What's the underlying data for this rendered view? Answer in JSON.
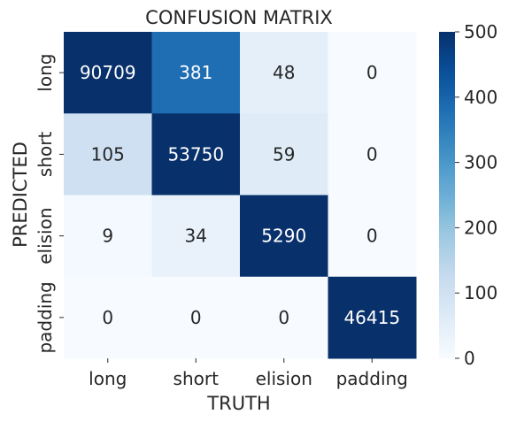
{
  "chart_data": {
    "type": "heatmap",
    "title": "CONFUSION MATRIX",
    "xlabel": "TRUTH",
    "ylabel": "PREDICTED",
    "x_categories": [
      "long",
      "short",
      "elision",
      "padding"
    ],
    "y_categories": [
      "long",
      "short",
      "elision",
      "padding"
    ],
    "values": [
      [
        90709,
        381,
        48,
        0
      ],
      [
        105,
        53750,
        59,
        0
      ],
      [
        9,
        34,
        5290,
        0
      ],
      [
        0,
        0,
        0,
        46415
      ]
    ],
    "color_range": [
      0,
      500
    ],
    "colormap": "Blues",
    "colorbar_ticks": [
      0,
      100,
      200,
      300,
      400,
      500
    ]
  }
}
